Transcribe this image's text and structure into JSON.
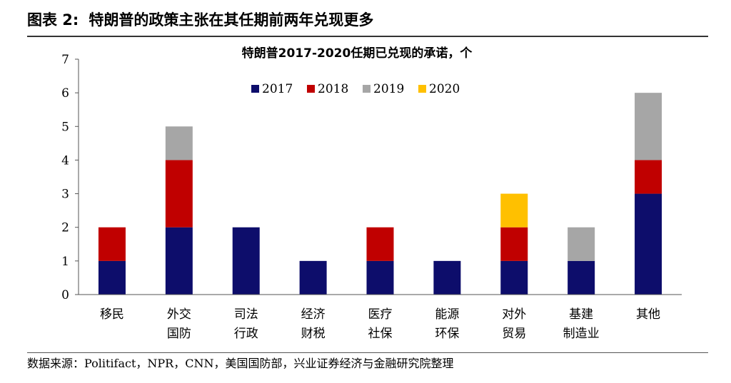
{
  "header": {
    "label": "图表 2:",
    "title": "特朗普的政策主张在其任期前两年兑现更多"
  },
  "source": "数据来源：Politifact，NPR，CNN，美国国防部，兴业证券经济与金融研究院整理",
  "colors": {
    "2017": "#0d0d6b",
    "2018": "#c00000",
    "2019": "#a6a6a6",
    "2020": "#ffc000",
    "axis": "#555555"
  },
  "chart_data": {
    "type": "bar",
    "stacked": true,
    "title": "特朗普2017-2020任期已兑现的承诺，个",
    "xlabel": "",
    "ylabel": "",
    "ylim": [
      0,
      7
    ],
    "yticks": [
      0,
      1,
      2,
      3,
      4,
      5,
      6,
      7
    ],
    "legend_position": "top-center",
    "grid": false,
    "categories": [
      [
        "移民"
      ],
      [
        "外交",
        "国防"
      ],
      [
        "司法",
        "行政"
      ],
      [
        "经济",
        "财税"
      ],
      [
        "医疗",
        "社保"
      ],
      [
        "能源",
        "环保"
      ],
      [
        "对外",
        "贸易"
      ],
      [
        "基建",
        "制造业"
      ],
      [
        "其他"
      ]
    ],
    "series": [
      {
        "name": "2017",
        "values": [
          1,
          2,
          2,
          1,
          1,
          1,
          1,
          1,
          3
        ]
      },
      {
        "name": "2018",
        "values": [
          1,
          2,
          0,
          0,
          1,
          0,
          1,
          0,
          1
        ]
      },
      {
        "name": "2019",
        "values": [
          0,
          1,
          0,
          0,
          0,
          0,
          0,
          1,
          2
        ]
      },
      {
        "name": "2020",
        "values": [
          0,
          0,
          0,
          0,
          0,
          0,
          1,
          0,
          0
        ]
      }
    ]
  }
}
